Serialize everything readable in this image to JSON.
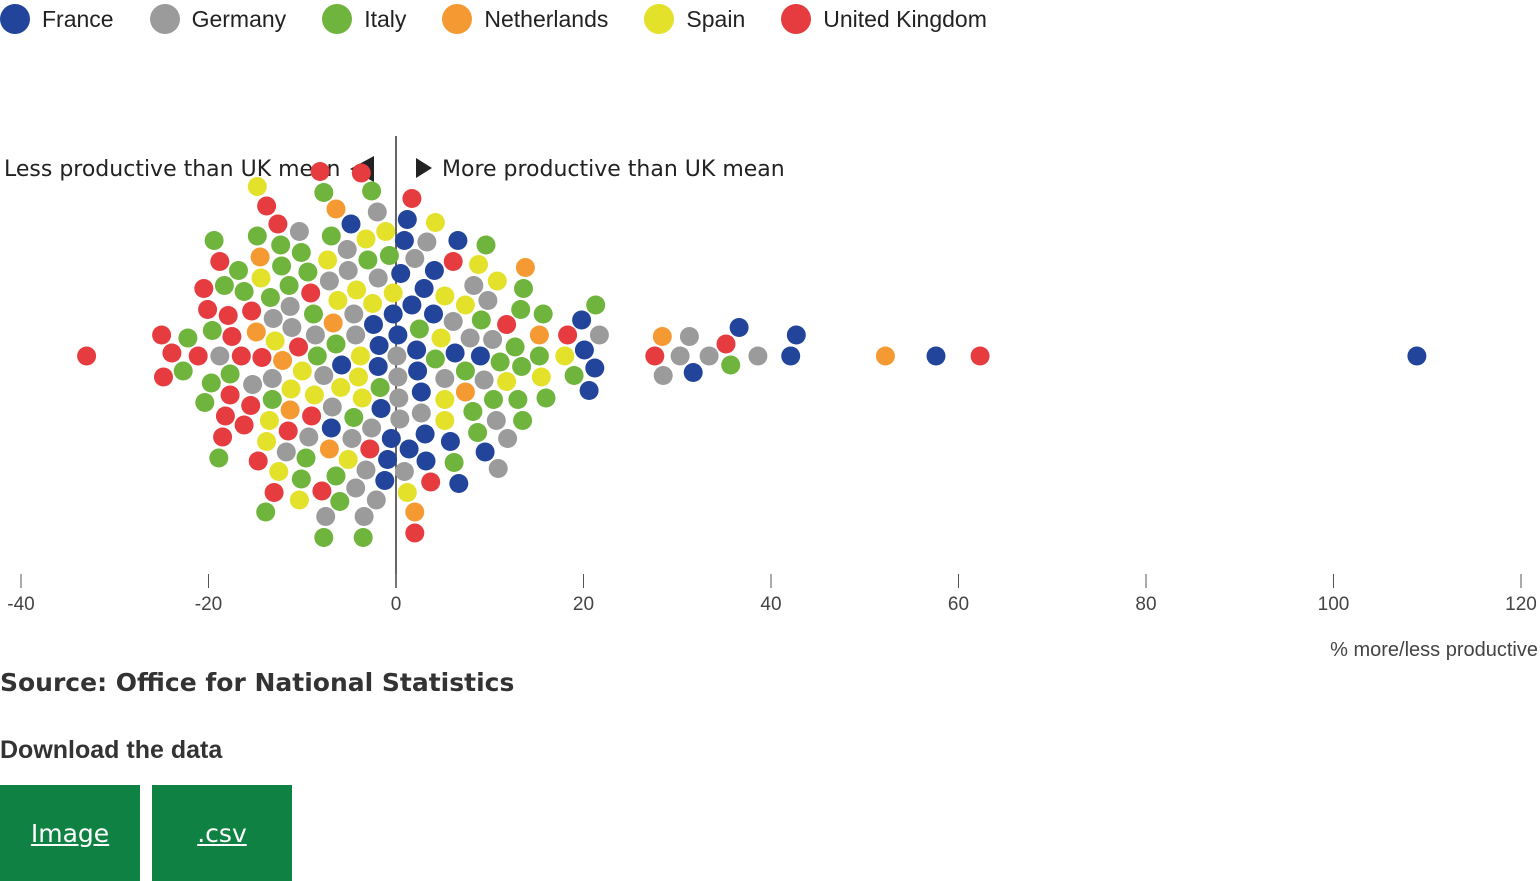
{
  "legend": [
    {
      "label": "France",
      "color": "#22449a"
    },
    {
      "label": "Germany",
      "color": "#9b9b9b"
    },
    {
      "label": "Italy",
      "color": "#6fb43c"
    },
    {
      "label": "Netherlands",
      "color": "#f59a33"
    },
    {
      "label": "Spain",
      "color": "#e4e12b"
    },
    {
      "label": "United Kingdom",
      "color": "#e63c3f"
    }
  ],
  "annotations": {
    "left": "Less productive than UK mean",
    "right": "More productive than UK mean"
  },
  "source": "Source: Office for National Statistics",
  "download": {
    "title": "Download the data",
    "image_label": "Image",
    "csv_label": ".csv"
  },
  "chart_data": {
    "type": "scatter",
    "title": "",
    "xlabel": "% more/less productive",
    "ylabel": "",
    "xlim": [
      -40,
      120
    ],
    "xticks": [
      -40,
      -20,
      0,
      20,
      40,
      60,
      80,
      100,
      120
    ],
    "xtick_labels": [
      "-40",
      "-20",
      "0",
      "20",
      "40",
      "60",
      "80",
      "100",
      "120"
    ],
    "reference_line": 0,
    "grid": false,
    "legend_position": "top-left",
    "series": [
      {
        "name": "France",
        "x": [
          -1.8,
          0.5,
          3,
          5.8,
          -1.2,
          6.6,
          2.3,
          3.1,
          -0.9,
          1.4,
          -4.8,
          -0.3,
          0.2,
          4,
          -6.9,
          -2.4,
          -1.6,
          1.2,
          3.2,
          -1.9,
          6.7,
          9,
          -0.5,
          4.1,
          6.3,
          -5.8,
          0.9,
          20.6,
          19.8,
          20.1,
          21.2,
          31.7,
          36.6,
          42.7,
          42.1,
          57.6,
          108.9,
          2.2,
          2.7,
          9.5,
          1.7
        ]
      },
      {
        "name": "Germany",
        "x": [
          0.4,
          -9.3,
          8.3,
          10.3,
          -3.4,
          -5.1,
          -7.1,
          -10.3,
          -11.1,
          0.1,
          10.9,
          -4.7,
          -1.9,
          2,
          7.9,
          -4.5,
          -8.6,
          9.4,
          11.9,
          -3.2,
          -15.3,
          3.3,
          5.2,
          -11.3,
          -7.7,
          -2.6,
          -13.1,
          10.7,
          -6.8,
          0.2,
          -4.3,
          -18.8,
          -7.5,
          2.7,
          -13.2,
          -11.7,
          21.7,
          28.5,
          30.3,
          33.4,
          38.6,
          31.3,
          -2.1,
          6.1,
          9.8,
          -5.2,
          0.3,
          -4.3,
          -2,
          0.9
        ]
      },
      {
        "name": "Italy",
        "x": [
          -11.4,
          -1.7,
          -7.7,
          -3,
          4.2,
          8.2,
          -9.4,
          -22.2,
          12.7,
          21.3,
          -13.9,
          -18.9,
          -9.6,
          -3.5,
          10.4,
          13.5,
          -22.7,
          -19.7,
          -6,
          8.7,
          19,
          -10.1,
          -14.8,
          -13.2,
          13.6,
          -19.4,
          -16.8,
          16,
          -20.4,
          13.4,
          15.7,
          -12.2,
          -8.8,
          2.5,
          -17.7,
          15.3,
          -19.6,
          13,
          -13.4,
          -6.4,
          9.6,
          6.2,
          -10.1,
          -6.9,
          -0.7,
          -16.2,
          -12.3,
          -4.5,
          9.1,
          13.3,
          11.1,
          -7.7,
          -18.3,
          35.7,
          -2.6,
          -6.4,
          7.4,
          -8.4
        ]
      },
      {
        "name": "Netherlands",
        "x": [
          -6.4,
          13.8,
          -11.3,
          15.3,
          -14.5,
          -7.1,
          -12.1,
          2,
          7.4,
          -6.7,
          -14.9,
          52.2,
          28.4
        ]
      },
      {
        "name": "Spain",
        "x": [
          -4,
          -5.9,
          -13.8,
          -2.5,
          4.8,
          -3.6,
          -14.4,
          -12.9,
          11.8,
          15.5,
          5.2,
          -6.2,
          -14.8,
          -10.3,
          7.4,
          -5.1,
          -0.3,
          10.8,
          18,
          -3.8,
          4.2,
          -13.5,
          8.8,
          5.2,
          -1.1,
          -7.3,
          -11.2,
          -4.2,
          -10,
          5.2,
          -12.5,
          -8.7,
          -3.2,
          1.2
        ]
      },
      {
        "name": "United Kingdom",
        "x": [
          -20.1,
          -17.5,
          -13,
          -15.5,
          -18.5,
          -20.5,
          -15.4,
          -9.1,
          -24.8,
          -16.2,
          -10.4,
          -7.9,
          -2.8,
          3.7,
          6.1,
          18.3,
          -18.2,
          1.7,
          -11.5,
          -25,
          -8.1,
          -17.7,
          -14.3,
          -13.8,
          -23.9,
          -21.1,
          11.8,
          -17.9,
          -14.7,
          -3.7,
          2,
          -18.8,
          -9,
          -16.5,
          -12.6,
          -33,
          27.6,
          35.2,
          62.3
        ]
      }
    ]
  }
}
